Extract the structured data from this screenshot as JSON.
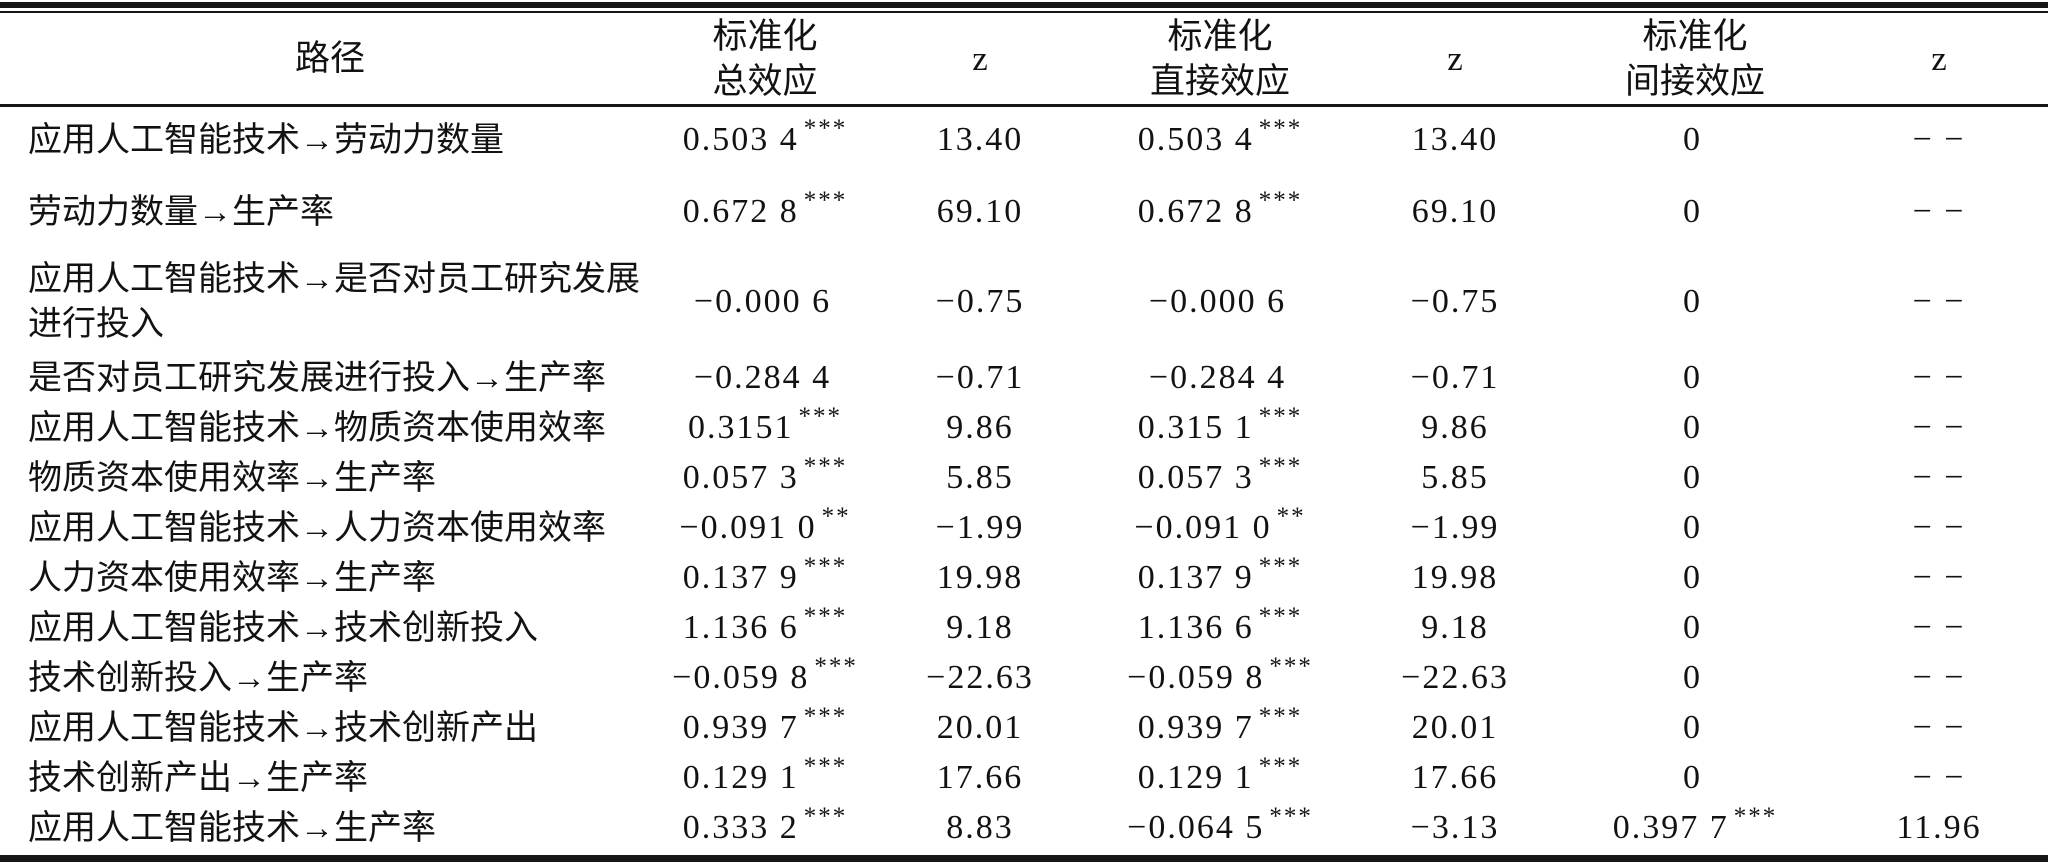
{
  "colors": {
    "text": "#121212",
    "rule": "#161616",
    "background": "#ffffff"
  },
  "table": {
    "header": {
      "path": "路径",
      "total_line1": "标准化",
      "total_line2": "总效应",
      "z_total": "z",
      "direct_line1": "标准化",
      "direct_line2": "直接效应",
      "z_direct": "z",
      "indirect_line1": "标准化",
      "indirect_line2": "间接效应",
      "z_indirect": "z"
    },
    "rows": [
      {
        "path": "应用人工智能技术→劳动力数量",
        "total": "0.503 4",
        "total_stars": "***",
        "z_total": "13.40",
        "direct": "0.503 4",
        "direct_stars": "***",
        "z_direct": "13.40",
        "indirect": "0",
        "indirect_stars": "",
        "z_indirect": "− −"
      },
      {
        "path": "劳动力数量→生产率",
        "total": "0.672 8",
        "total_stars": "***",
        "z_total": "69.10",
        "direct": "0.672 8",
        "direct_stars": "***",
        "z_direct": "69.10",
        "indirect": "0",
        "indirect_stars": "",
        "z_indirect": "− −"
      },
      {
        "path": "应用人工智能技术→是否对员工研究发展进行投入",
        "total": "−0.000 6",
        "total_stars": "",
        "z_total": "−0.75",
        "direct": "−0.000 6",
        "direct_stars": "",
        "z_direct": "−0.75",
        "indirect": "0",
        "indirect_stars": "",
        "z_indirect": "− −"
      },
      {
        "path": "是否对员工研究发展进行投入→生产率",
        "total": "−0.284 4",
        "total_stars": "",
        "z_total": "−0.71",
        "direct": "−0.284 4",
        "direct_stars": "",
        "z_direct": "−0.71",
        "indirect": "0",
        "indirect_stars": "",
        "z_indirect": "− −"
      },
      {
        "path": "应用人工智能技术→物质资本使用效率",
        "total": "0.3151",
        "total_stars": "***",
        "z_total": "9.86",
        "direct": "0.315 1",
        "direct_stars": "***",
        "z_direct": "9.86",
        "indirect": "0",
        "indirect_stars": "",
        "z_indirect": "− −"
      },
      {
        "path": "物质资本使用效率→生产率",
        "total": "0.057 3",
        "total_stars": "***",
        "z_total": "5.85",
        "direct": "0.057 3",
        "direct_stars": "***",
        "z_direct": "5.85",
        "indirect": "0",
        "indirect_stars": "",
        "z_indirect": "− −"
      },
      {
        "path": "应用人工智能技术→人力资本使用效率",
        "total": "−0.091 0",
        "total_stars": "**",
        "z_total": "−1.99",
        "direct": "−0.091 0",
        "direct_stars": "**",
        "z_direct": "−1.99",
        "indirect": "0",
        "indirect_stars": "",
        "z_indirect": "− −"
      },
      {
        "path": "人力资本使用效率→生产率",
        "total": "0.137 9",
        "total_stars": "***",
        "z_total": "19.98",
        "direct": "0.137 9",
        "direct_stars": "***",
        "z_direct": "19.98",
        "indirect": "0",
        "indirect_stars": "",
        "z_indirect": "− −"
      },
      {
        "path": "应用人工智能技术→技术创新投入",
        "total": "1.136 6",
        "total_stars": "***",
        "z_total": "9.18",
        "direct": "1.136 6",
        "direct_stars": "***",
        "z_direct": "9.18",
        "indirect": "0",
        "indirect_stars": "",
        "z_indirect": "− −"
      },
      {
        "path": "技术创新投入→生产率",
        "total": "−0.059 8",
        "total_stars": "***",
        "z_total": "−22.63",
        "direct": "−0.059 8",
        "direct_stars": "***",
        "z_direct": "−22.63",
        "indirect": "0",
        "indirect_stars": "",
        "z_indirect": "− −"
      },
      {
        "path": "应用人工智能技术→技术创新产出",
        "total": "0.939 7",
        "total_stars": "***",
        "z_total": "20.01",
        "direct": "0.939 7",
        "direct_stars": "***",
        "z_direct": "20.01",
        "indirect": "0",
        "indirect_stars": "",
        "z_indirect": "− −"
      },
      {
        "path": "技术创新产出→生产率",
        "total": "0.129 1",
        "total_stars": "***",
        "z_total": "17.66",
        "direct": "0.129 1",
        "direct_stars": "***",
        "z_direct": "17.66",
        "indirect": "0",
        "indirect_stars": "",
        "z_indirect": "− −"
      },
      {
        "path": "应用人工智能技术→生产率",
        "total": "0.333 2",
        "total_stars": "***",
        "z_total": "8.83",
        "direct": "−0.064 5",
        "direct_stars": "***",
        "z_direct": "−3.13",
        "indirect": "0.397 7",
        "indirect_stars": "***",
        "z_indirect": "11.96"
      }
    ]
  },
  "chart_data": {
    "type": "table",
    "title": "",
    "columns": [
      "路径",
      "标准化总效应",
      "z",
      "标准化直接效应",
      "z",
      "标准化间接效应",
      "z"
    ],
    "rows": [
      [
        "应用人工智能技术→劳动力数量",
        "0.503 4***",
        "13.40",
        "0.503 4***",
        "13.40",
        "0",
        "− −"
      ],
      [
        "劳动力数量→生产率",
        "0.672 8***",
        "69.10",
        "0.672 8***",
        "69.10",
        "0",
        "− −"
      ],
      [
        "应用人工智能技术→是否对员工研究发展进行投入",
        "−0.000 6",
        "−0.75",
        "−0.000 6",
        "−0.75",
        "0",
        "− −"
      ],
      [
        "是否对员工研究发展进行投入→生产率",
        "−0.284 4",
        "−0.71",
        "−0.284 4",
        "−0.71",
        "0",
        "− −"
      ],
      [
        "应用人工智能技术→物质资本使用效率",
        "0.3151***",
        "9.86",
        "0.315 1***",
        "9.86",
        "0",
        "− −"
      ],
      [
        "物质资本使用效率→生产率",
        "0.057 3***",
        "5.85",
        "0.057 3***",
        "5.85",
        "0",
        "− −"
      ],
      [
        "应用人工智能技术→人力资本使用效率",
        "−0.091 0**",
        "−1.99",
        "−0.091 0**",
        "−1.99",
        "0",
        "− −"
      ],
      [
        "人力资本使用效率→生产率",
        "0.137 9***",
        "19.98",
        "0.137 9***",
        "19.98",
        "0",
        "− −"
      ],
      [
        "应用人工智能技术→技术创新投入",
        "1.136 6***",
        "9.18",
        "1.136 6***",
        "9.18",
        "0",
        "− −"
      ],
      [
        "技术创新投入→生产率",
        "−0.059 8***",
        "−22.63",
        "−0.059 8***",
        "−22.63",
        "0",
        "− −"
      ],
      [
        "应用人工智能技术→技术创新产出",
        "0.939 7***",
        "20.01",
        "0.939 7***",
        "20.01",
        "0",
        "− −"
      ],
      [
        "技术创新产出→生产率",
        "0.129 1***",
        "17.66",
        "0.129 1***",
        "17.66",
        "0",
        "− −"
      ],
      [
        "应用人工智能技术→生产率",
        "0.333 2***",
        "8.83",
        "−0.064 5***",
        "−3.13",
        "0.397 7***",
        "11.96"
      ]
    ]
  }
}
